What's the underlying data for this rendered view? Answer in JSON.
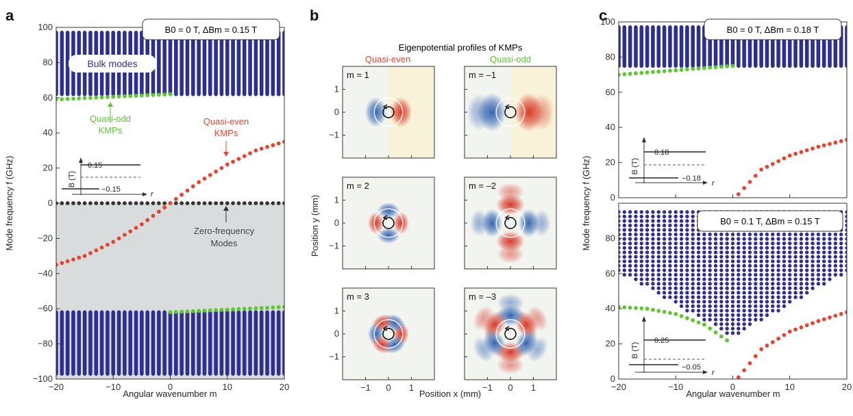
{
  "panels": {
    "a": {
      "label": "a",
      "xlabel": "Angular wavenumber m",
      "ylabel": "Mode frequency f (GHz)",
      "legend": "B0 = 0 T, ΔBm = 0.15 T",
      "ann_bulk": "Bulk modes",
      "ann_odd1": "Quasi-odd",
      "ann_odd2": "KMPs",
      "ann_even1": "Quasi-even",
      "ann_even2": "KMPs",
      "ann_zero1": "Zero-frequency",
      "ann_zero2": "Modes",
      "inset": {
        "ylabel": "B (T)",
        "xlabel": "r",
        "hi": "0.15",
        "lo": "−0.15"
      }
    },
    "b": {
      "label": "b",
      "title": "Eigenpotential profiles of KMPs",
      "col_even": "Quasi-even",
      "col_odd": "Quasi-odd",
      "xlabel": "Position x (mm)",
      "ylabel": "Position y (mm)",
      "maps": [
        "m = 1",
        "m = –1",
        "m = 2",
        "m = –2",
        "m = 3",
        "m = –3"
      ]
    },
    "c": {
      "label": "c",
      "ylabel": "Mode frequency f (GHz)",
      "xlabel": "Angular wavenumber m",
      "top_legend": "B0 = 0 T, ΔBm = 0.18 T",
      "bottom_legend": "B0 = 0.1 T, ΔBm = 0.15 T",
      "inset_top": {
        "ylabel": "B (T)",
        "xlabel": "r",
        "hi": "0.18",
        "lo": "−0.18"
      },
      "inset_bottom": {
        "ylabel": "B (T)",
        "xlabel": "r",
        "hi": "0.25",
        "lo": "−0.05"
      }
    }
  },
  "colors": {
    "bulk": "#2e2f8f",
    "even": "#e8432f",
    "odd": "#5cc72e",
    "zero": "#333333",
    "shade": "#d9dcdc",
    "map_red": "#d7301f",
    "map_blue": "#2c5fae",
    "map_yellow": "#fbf2c8"
  },
  "chart_data": [
    {
      "id": "a",
      "type": "scatter",
      "xlim": [
        -20,
        20
      ],
      "ylim": [
        -100,
        100
      ],
      "xticks": [
        -20,
        -10,
        0,
        10,
        20
      ],
      "yticks": [
        -100,
        -80,
        -60,
        -40,
        -20,
        0,
        20,
        40,
        60,
        80,
        100
      ],
      "series": [
        {
          "name": "Bulk modes",
          "m_range": [
            -20,
            20
          ],
          "f_band_upper": [
            62,
            97
          ],
          "f_band_lower": [
            -97,
            -62
          ]
        },
        {
          "name": "Quasi-odd KMPs",
          "m_upper": [
            -20,
            0
          ],
          "f_upper": [
            59,
            62
          ],
          "m_lower": [
            0,
            20
          ],
          "f_lower": [
            -62,
            -59
          ]
        },
        {
          "name": "Quasi-even KMPs",
          "m": [
            -20,
            -15,
            -10,
            -5,
            0,
            5,
            10,
            15,
            20
          ],
          "f": [
            -35,
            -30,
            -22,
            -12,
            0,
            12,
            22,
            30,
            35
          ]
        },
        {
          "name": "Zero-frequency Modes",
          "m_range": [
            -20,
            20
          ],
          "f": 0
        }
      ]
    },
    {
      "id": "b",
      "type": "heatmap",
      "xlim": [
        -2,
        2
      ],
      "ylim": [
        -2,
        2
      ],
      "xticks": [
        -1,
        0,
        1
      ],
      "yticks": [
        -1,
        0,
        1
      ],
      "columns": [
        "Quasi-even",
        "Quasi-odd"
      ],
      "m_values": [
        1,
        -1,
        2,
        -2,
        3,
        -3
      ]
    },
    {
      "id": "c_top",
      "type": "scatter",
      "xlim": [
        -20,
        20
      ],
      "ylim": [
        0,
        100
      ],
      "yticks": [
        0,
        20,
        40,
        60,
        80,
        100
      ],
      "series": [
        {
          "name": "Bulk modes",
          "m_range": [
            -20,
            20
          ],
          "f_band": [
            75,
            97
          ]
        },
        {
          "name": "Quasi-odd KMPs",
          "m": [
            -20,
            0
          ],
          "f": [
            70,
            75
          ]
        },
        {
          "name": "Quasi-even KMPs",
          "m": [
            1,
            5,
            10,
            15,
            20
          ],
          "f": [
            2,
            16,
            24,
            29,
            33
          ]
        }
      ]
    },
    {
      "id": "c_bottom",
      "type": "scatter",
      "xlim": [
        -20,
        20
      ],
      "ylim": [
        0,
        100
      ],
      "xticks": [
        -20,
        -10,
        0,
        10,
        20
      ],
      "yticks": [
        0,
        20,
        40,
        60,
        80
      ],
      "series": [
        {
          "name": "Bulk modes",
          "m_range": [
            -20,
            20
          ],
          "f_top": 95,
          "f_min_at_m0": 24
        },
        {
          "name": "Quasi-odd KMPs",
          "m": [
            -20,
            -15,
            -10,
            -5,
            -1
          ],
          "f": [
            41,
            40,
            37,
            31,
            22
          ]
        },
        {
          "name": "Quasi-even KMPs",
          "m": [
            1,
            5,
            10,
            15,
            20
          ],
          "f": [
            1,
            17,
            27,
            33,
            38
          ]
        }
      ]
    }
  ]
}
